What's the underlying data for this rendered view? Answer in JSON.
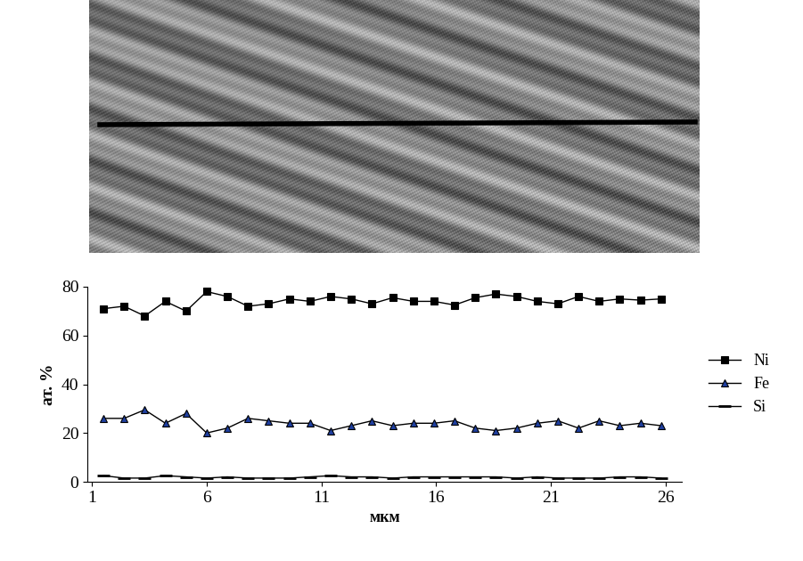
{
  "chart_data": {
    "type": "line",
    "x_label": "мкм",
    "y_label": "ат. %",
    "x": [
      1.5,
      2.4,
      3.3,
      4.2,
      5.1,
      6.0,
      6.9,
      7.8,
      8.7,
      9.6,
      10.5,
      11.4,
      12.3,
      13.2,
      14.1,
      15.0,
      15.9,
      16.8,
      17.7,
      18.6,
      19.5,
      20.4,
      21.3,
      22.2,
      23.1,
      24.0,
      24.9,
      25.8
    ],
    "series": [
      {
        "name": "Ni",
        "color": "#000000",
        "marker": "square",
        "values": [
          71,
          72,
          68,
          74,
          70,
          78,
          76,
          72,
          73,
          75,
          74,
          76,
          75,
          73,
          75.5,
          74,
          74,
          72.5,
          75.5,
          77,
          76,
          74,
          73,
          76,
          74,
          75,
          74.5,
          75
        ]
      },
      {
        "name": "Fe",
        "color": "#1f3f9f",
        "marker": "triangle",
        "values": [
          26,
          26,
          29.5,
          24,
          28,
          20,
          22,
          26,
          25,
          24,
          24,
          21,
          23,
          25,
          23,
          24,
          24,
          25,
          22,
          21,
          22,
          24,
          25,
          22,
          25,
          23,
          24,
          23
        ]
      },
      {
        "name": "Si",
        "color": "#000000",
        "marker": "dash",
        "values": [
          2.5,
          1.5,
          1.5,
          2.5,
          2,
          1.5,
          2,
          1.5,
          1.5,
          1.5,
          2,
          2.5,
          2,
          2,
          1.5,
          2,
          2,
          2,
          2,
          2,
          1.5,
          2,
          1.5,
          1.5,
          1.5,
          2,
          2,
          1.5
        ]
      }
    ],
    "xlim": [
      0.8,
      26.7
    ],
    "xticks": [
      1,
      6,
      11,
      16,
      21,
      26
    ],
    "ylim": [
      0,
      80
    ],
    "yticks": [
      0,
      20,
      40,
      60,
      80
    ],
    "grid": false,
    "legend": "right"
  }
}
